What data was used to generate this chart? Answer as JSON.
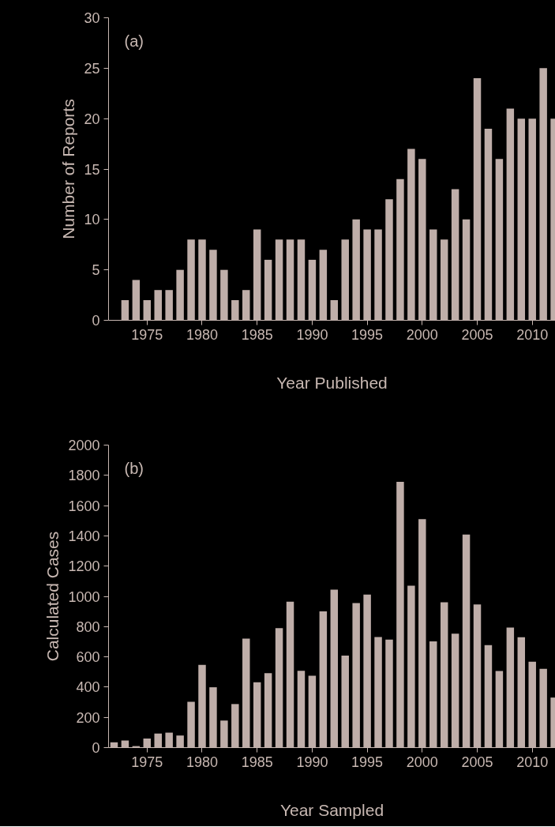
{
  "chart_data": [
    {
      "type": "bar",
      "xlabel": "Year Published",
      "ylabel": "Number of Reports",
      "annotations": [
        "(a)"
      ],
      "color": "#bfaea9",
      "grid": false,
      "x": [
        1973,
        1974,
        1975,
        1976,
        1977,
        1978,
        1979,
        1980,
        1981,
        1982,
        1983,
        1984,
        1985,
        1986,
        1987,
        1988,
        1989,
        1990,
        1991,
        1992,
        1993,
        1994,
        1995,
        1996,
        1997,
        1998,
        1999,
        2000,
        2001,
        2002,
        2003,
        2004,
        2005,
        2006,
        2007,
        2008,
        2009,
        2010,
        2011,
        2012
      ],
      "values": [
        2,
        4,
        2,
        3,
        3,
        5,
        8,
        8,
        7,
        5,
        2,
        3,
        9,
        6,
        8,
        8,
        8,
        6,
        7,
        2,
        8,
        10,
        9,
        9,
        12,
        14,
        17,
        16,
        9,
        8,
        13,
        10,
        24,
        19,
        16,
        21,
        20,
        20,
        25,
        20
      ],
      "xlim": [
        1971.5,
        2012.1
      ],
      "ylim": [
        0,
        30
      ],
      "xticks": [
        1975,
        1980,
        1985,
        1990,
        1995,
        2000,
        2005,
        2010
      ],
      "yticks": [
        0,
        5,
        10,
        15,
        20,
        25,
        30
      ]
    },
    {
      "type": "bar",
      "xlabel": "Year Sampled",
      "ylabel": "Calculated Cases",
      "annotations": [
        "(b)"
      ],
      "color": "#bfaea9",
      "grid": false,
      "x": [
        1972,
        1973,
        1974,
        1975,
        1976,
        1977,
        1978,
        1979,
        1980,
        1981,
        1982,
        1983,
        1984,
        1985,
        1986,
        1987,
        1988,
        1989,
        1990,
        1991,
        1992,
        1993,
        1994,
        1995,
        1996,
        1997,
        1998,
        1999,
        2000,
        2001,
        2002,
        2003,
        2004,
        2005,
        2006,
        2007,
        2008,
        2009,
        2010,
        2011,
        2012
      ],
      "values": [
        35,
        47,
        10,
        60,
        93,
        99,
        80,
        303,
        547,
        399,
        179,
        288,
        720,
        432,
        492,
        790,
        965,
        508,
        475,
        901,
        1045,
        609,
        955,
        1012,
        731,
        714,
        1757,
        1070,
        1510,
        702,
        961,
        753,
        1409,
        947,
        677,
        506,
        794,
        730,
        568,
        521,
        331
      ],
      "xlim": [
        1971.5,
        2012.1
      ],
      "ylim": [
        0,
        2000
      ],
      "xticks": [
        1975,
        1980,
        1985,
        1990,
        1995,
        2000,
        2005,
        2010
      ],
      "yticks": [
        0,
        200,
        400,
        600,
        800,
        1000,
        1200,
        1400,
        1600,
        1800,
        2000
      ]
    }
  ]
}
